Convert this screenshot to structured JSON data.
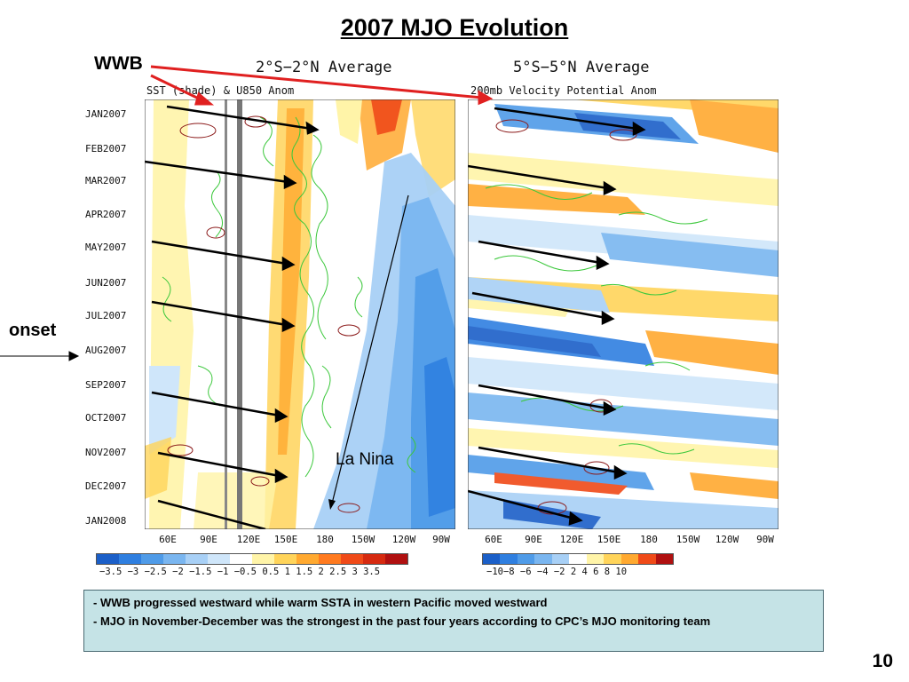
{
  "title": "2007 MJO Evolution",
  "left_panel": {
    "subtitle": "2°S−2°N Average",
    "label": "SST (shade) & U850 Anom"
  },
  "right_panel": {
    "subtitle": "5°S−5°N Average",
    "label": "200mb Velocity Potential Anom"
  },
  "y_ticks": [
    "JAN2007",
    "FEB2007",
    "MAR2007",
    "APR2007",
    "MAY2007",
    "JUN2007",
    "JUL2007",
    "AUG2007",
    "SEP2007",
    "OCT2007",
    "NOV2007",
    "DEC2007",
    "JAN2008"
  ],
  "x_ticks": [
    "60E",
    "90E",
    "120E",
    "150E",
    "180",
    "150W",
    "120W",
    "90W"
  ],
  "annotations": {
    "wwb": "WWB",
    "onset": "onset",
    "la_nina": "La Nina"
  },
  "colorbar_left": {
    "ticks": "−3.5 −3 −2.5 −2 −1.5 −1 −0.5 0.5  1  1.5  2  2.5  3  3.5",
    "colors": [
      "#1b5fc8",
      "#2f7fe0",
      "#4f9be8",
      "#7ab6f0",
      "#a8d0f6",
      "#cfe6fa",
      "#ffffff",
      "#fff4a8",
      "#ffd45a",
      "#ffa930",
      "#ff7a1f",
      "#f04a18",
      "#d62a10",
      "#b01010"
    ]
  },
  "colorbar_right": {
    "ticks": "−10−8 −6 −4 −2  2   4   6   8  10",
    "colors": [
      "#1b5fc8",
      "#2f7fe0",
      "#4f9be8",
      "#7ab6f0",
      "#a8d0f6",
      "#ffffff",
      "#fff4a8",
      "#ffd45a",
      "#ffa930",
      "#f04a18",
      "#b01010"
    ]
  },
  "summary": {
    "line1": "- WWB progressed westward  while warm SSTA in western Pacific moved westward",
    "line2": "-  MJO in November-December was the strongest in the past four years according to CPC’s MJO monitoring team"
  },
  "page_number": "10"
}
